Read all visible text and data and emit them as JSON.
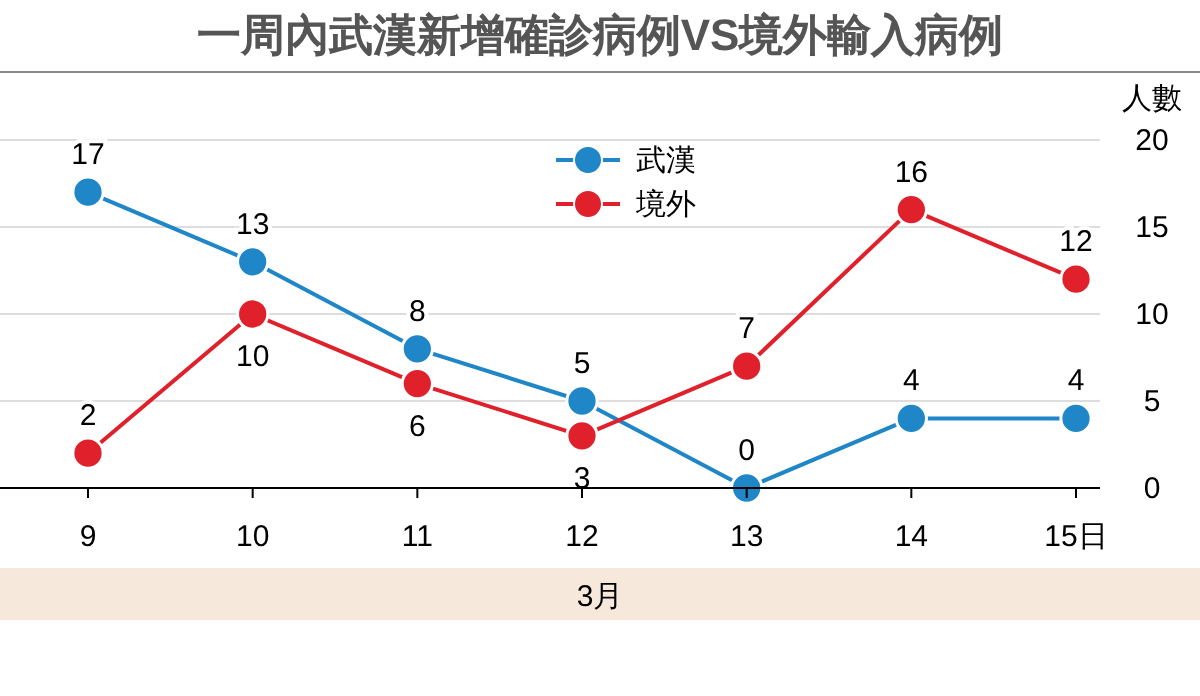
{
  "chart_data": {
    "type": "line",
    "title": "一周內武漢新增確診病例VS境外輸入病例",
    "xlabel": "3月",
    "ylabel": "人數",
    "categories": [
      "9",
      "10",
      "11",
      "12",
      "13",
      "14",
      "15日"
    ],
    "series": [
      {
        "name": "武漢",
        "color": "#1f86c8",
        "values": [
          17,
          13,
          8,
          5,
          0,
          4,
          4
        ]
      },
      {
        "name": "境外",
        "color": "#e0202a",
        "values": [
          2,
          10,
          6,
          3,
          7,
          16,
          12
        ]
      }
    ],
    "ylim": [
      0,
      20
    ],
    "yticks": [
      0,
      5,
      10,
      15,
      20
    ],
    "grid": "y",
    "legend": "top",
    "marker": "circle",
    "data_labels": true
  }
}
